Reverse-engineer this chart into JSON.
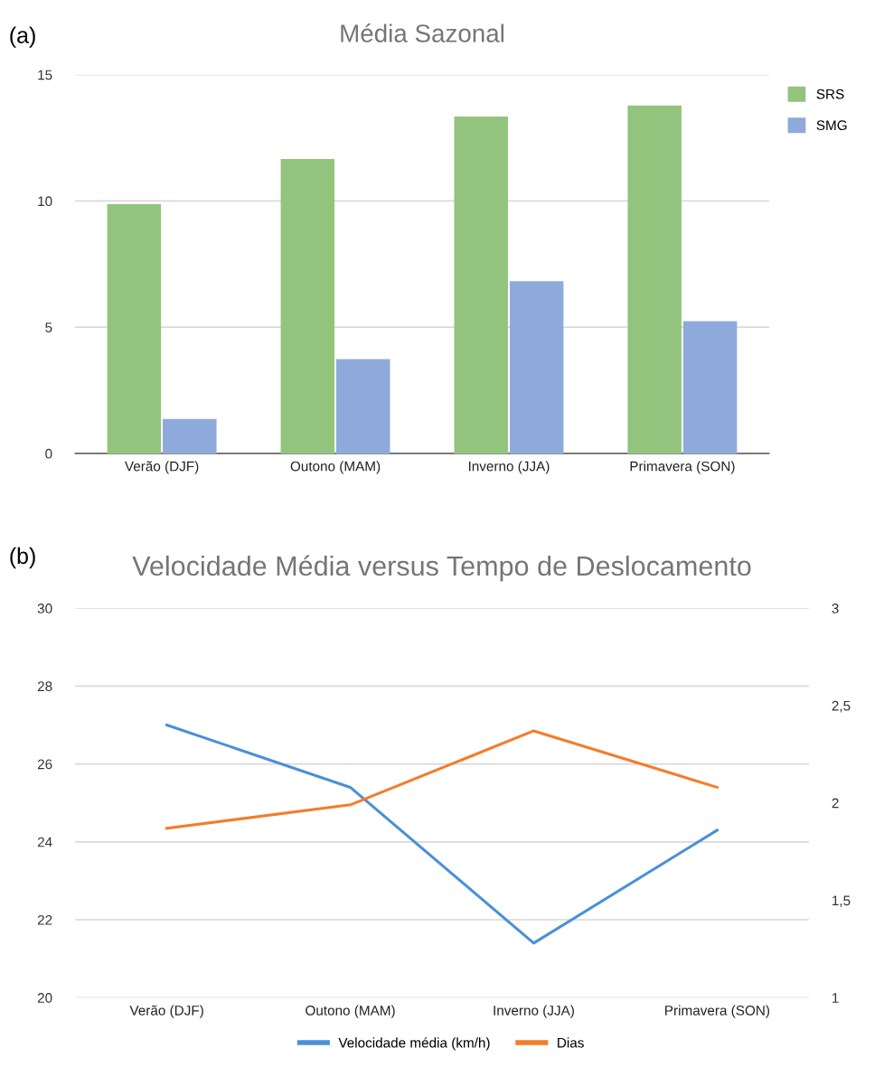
{
  "chart_data": [
    {
      "type": "bar",
      "title": "Média Sazonal",
      "annotations": [
        "(a)"
      ],
      "categories": [
        "Verão (DJF)",
        "Outono (MAM)",
        "Inverno (JJA)",
        "Primavera (SON)"
      ],
      "series": [
        {
          "name": "SRS",
          "color": "#93c47d",
          "values": [
            9.87,
            11.66,
            13.34,
            13.78
          ]
        },
        {
          "name": "SMG",
          "color": "#8eaadb",
          "values": [
            1.37,
            3.74,
            6.82,
            5.24
          ]
        }
      ],
      "ylim": [
        0,
        15
      ],
      "yticks": [
        0,
        5,
        10,
        15
      ],
      "grid": "y",
      "legend": "top right"
    },
    {
      "type": "line",
      "title": "Velocidade Média versus Tempo de Deslocamento",
      "annotations": [
        "(b)"
      ],
      "categories": [
        "Verão (DJF)",
        "Outono (MAM)",
        "Inverno (JJA)",
        "Primavera (SON)"
      ],
      "series": [
        {
          "name": "Velocidade média (km/h)",
          "color": "#4a90d9",
          "values": [
            27.0,
            25.4,
            21.4,
            24.3
          ]
        },
        {
          "name": "Dias",
          "color": "#f57c2a",
          "axis": "y2",
          "values": [
            1.87,
            1.99,
            2.37,
            2.08
          ]
        }
      ],
      "ylim": [
        20,
        30
      ],
      "yticks": [
        20,
        22,
        24,
        26,
        28,
        30
      ],
      "y2lim": [
        1,
        3
      ],
      "y2ticks": [
        1,
        {
          "value": 1.5,
          "label": "1,5"
        },
        2,
        {
          "value": 2.5,
          "label": "2,5"
        },
        3
      ],
      "grid": "y",
      "legend": "bottom",
      "marker": "none",
      "line_style": "solid"
    }
  ]
}
